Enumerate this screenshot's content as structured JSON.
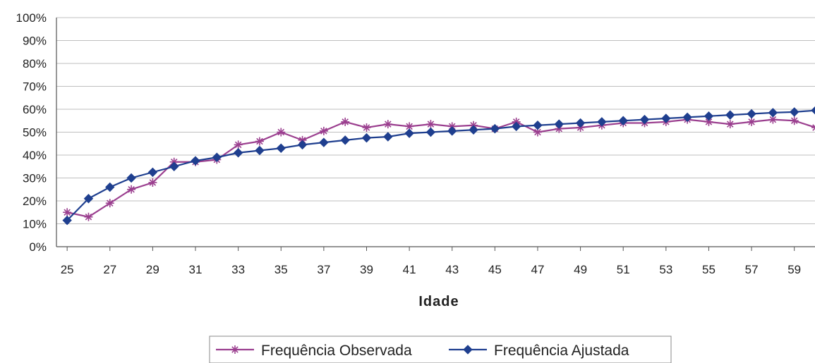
{
  "chart_data": {
    "type": "line",
    "title": "",
    "xlabel": "Idade",
    "ylabel": "",
    "x": [
      25,
      26,
      27,
      28,
      29,
      30,
      31,
      32,
      33,
      34,
      35,
      36,
      37,
      38,
      39,
      40,
      41,
      42,
      43,
      44,
      45,
      46,
      47,
      48,
      49,
      50,
      51,
      52,
      53,
      54,
      55,
      56,
      57,
      58,
      59,
      60
    ],
    "x_tick_labels": [
      "25",
      "27",
      "29",
      "31",
      "33",
      "35",
      "37",
      "39",
      "41",
      "43",
      "45",
      "47",
      "49",
      "51",
      "53",
      "55",
      "57",
      "59"
    ],
    "y_tick_labels": [
      "0%",
      "10%",
      "20%",
      "30%",
      "40%",
      "50%",
      "60%",
      "70%",
      "80%",
      "90%",
      "100%"
    ],
    "ylim": [
      0,
      100
    ],
    "grid": true,
    "legend_position": "bottom",
    "series": [
      {
        "name": "Frequência Observada",
        "color": "#9b3f8f",
        "marker": "asterisk",
        "values": [
          15,
          13,
          19,
          25,
          28,
          37,
          37,
          38,
          44.5,
          46,
          50,
          46.5,
          50.5,
          54.5,
          52,
          53.5,
          52.5,
          53.5,
          52.5,
          53,
          51.5,
          54.5,
          50,
          51.5,
          52,
          53,
          54,
          54,
          54.5,
          55.5,
          54.5,
          53.5,
          54.5,
          55.5,
          55,
          52
        ]
      },
      {
        "name": "Frequência Ajustada",
        "color": "#1f3f8f",
        "marker": "diamond",
        "values": [
          11.5,
          21,
          26,
          30,
          32.5,
          35,
          37.5,
          39,
          41,
          42,
          43,
          44.5,
          45.5,
          46.5,
          47.5,
          48,
          49.5,
          50,
          50.5,
          51,
          51.5,
          52.5,
          53,
          53.5,
          54,
          54.5,
          55,
          55.5,
          56,
          56.5,
          57,
          57.5,
          58,
          58.5,
          58.8,
          59.5
        ]
      }
    ]
  }
}
